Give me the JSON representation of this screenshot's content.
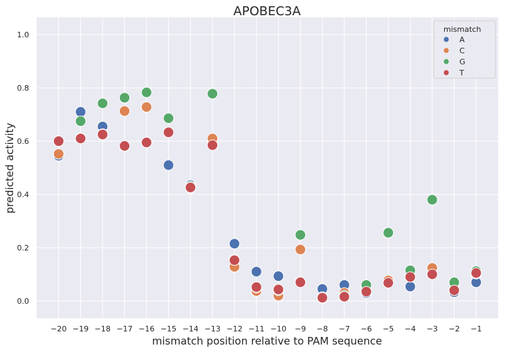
{
  "chart_data": {
    "type": "scatter",
    "title": "APOBEC3A",
    "xlabel": "mismatch position relative to PAM sequence",
    "ylabel": "predicted activity",
    "x": [
      -20,
      -19,
      -18,
      -17,
      -16,
      -15,
      -14,
      -13,
      -12,
      -11,
      -10,
      -9,
      -8,
      -7,
      -6,
      -5,
      -4,
      -3,
      -2,
      -1
    ],
    "x_tick_labels": [
      "−20",
      "−19",
      "−18",
      "−17",
      "−16",
      "−15",
      "−14",
      "−13",
      "−12",
      "−11",
      "−10",
      "−9",
      "−8",
      "−7",
      "−6",
      "−5",
      "−4",
      "−3",
      "−2",
      "−1"
    ],
    "y_ticks": [
      0.0,
      0.2,
      0.4,
      0.6,
      0.8,
      1.0
    ],
    "y_tick_labels": [
      "0.0",
      "0.2",
      "0.4",
      "0.6",
      "0.8",
      "1.0"
    ],
    "ylim": [
      -0.065,
      1.065
    ],
    "grid": true,
    "legend": {
      "title": "mismatch",
      "position": "top-right"
    },
    "series": [
      {
        "name": "A",
        "color": "#4c72b0",
        "values": [
          0.545,
          0.71,
          0.655,
          0.58,
          0.595,
          0.51,
          0.435,
          0.585,
          0.215,
          0.11,
          0.093,
          0.073,
          0.045,
          0.06,
          0.03,
          0.07,
          0.054,
          0.1,
          0.033,
          0.07
        ]
      },
      {
        "name": "C",
        "color": "#dd8452",
        "values": [
          0.552,
          0.612,
          0.627,
          0.713,
          0.728,
          0.633,
          0.425,
          0.61,
          0.128,
          0.037,
          0.02,
          0.193,
          0.015,
          0.03,
          0.05,
          0.077,
          0.092,
          0.124,
          0.04,
          0.102
        ]
      },
      {
        "name": "G",
        "color": "#55a868",
        "values": [
          0.6,
          0.675,
          0.742,
          0.763,
          0.783,
          0.686,
          0.43,
          0.778,
          0.155,
          0.05,
          0.04,
          0.248,
          0.01,
          0.02,
          0.06,
          0.256,
          0.115,
          0.38,
          0.07,
          0.112
        ]
      },
      {
        "name": "T",
        "color": "#c44e52",
        "values": [
          0.6,
          0.61,
          0.625,
          0.582,
          0.595,
          0.633,
          0.426,
          0.585,
          0.153,
          0.052,
          0.043,
          0.07,
          0.012,
          0.016,
          0.035,
          0.068,
          0.09,
          0.1,
          0.04,
          0.105
        ]
      }
    ]
  },
  "style": {
    "plot_background": "#eaeaf2",
    "grid_color": "#ffffff",
    "marker_edge": "#ffffff"
  }
}
